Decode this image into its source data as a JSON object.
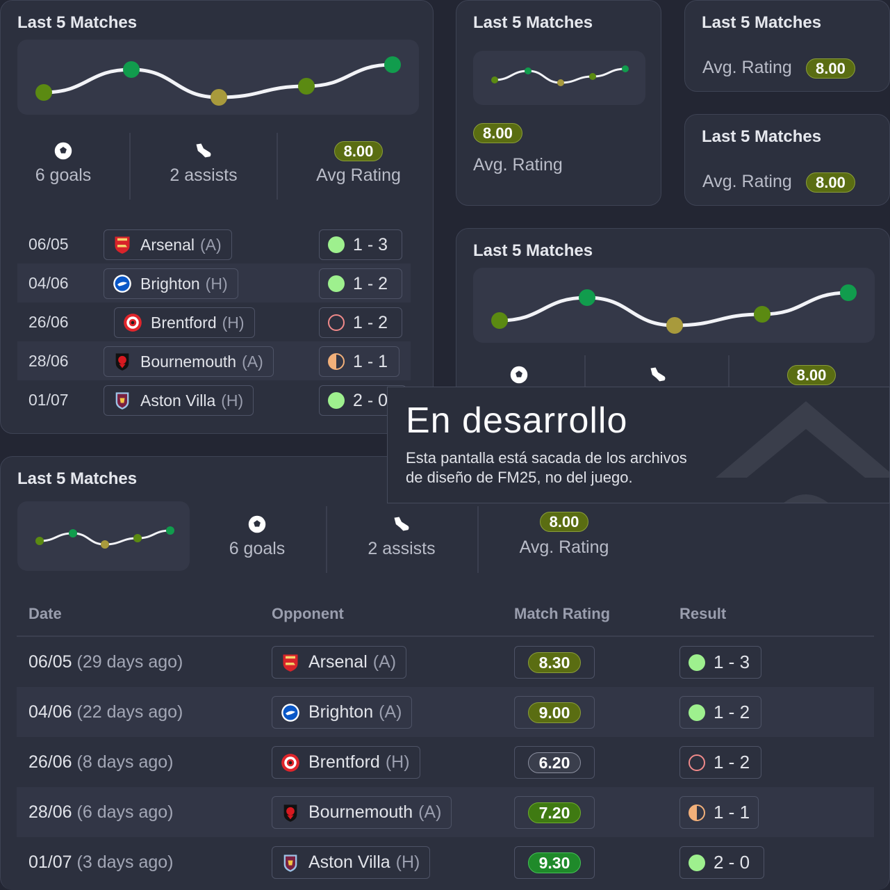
{
  "card_title": "Last 5 Matches",
  "stats": {
    "goals": "6 goals",
    "assists": "2 assists",
    "avg_rating": "8.00",
    "avg_label": "Avg Rating",
    "avg_label_dot": "Avg. Rating"
  },
  "icons": {
    "goals": "soccer-ball-icon",
    "assists": "football-boot-icon"
  },
  "colors": {
    "win": "#9ef08e",
    "loss": "#f08a8a",
    "draw": "#f2b07a",
    "rating_pill": "#5a6d12",
    "background": "#232633"
  },
  "form_ratings": [
    7.4,
    8.3,
    6.9,
    7.6,
    8.5
  ],
  "matches": [
    {
      "date": "06/05",
      "ago": "(29 days ago)",
      "team": "Arsenal",
      "venue_short": "(A)",
      "venue": "(A)",
      "rating": "8.30",
      "result": "1 - 3",
      "outcome": "win"
    },
    {
      "date": "04/06",
      "ago": "(22 days ago)",
      "team": "Brighton",
      "venue_short": "(H)",
      "venue": "(A)",
      "rating": "9.00",
      "result": "1 - 2",
      "outcome": "win"
    },
    {
      "date": "26/06",
      "ago": "(8 days ago)",
      "team": "Brentford",
      "venue_short": "(H)",
      "venue": "(H)",
      "rating": "6.20",
      "result": "1 - 2",
      "outcome": "loss"
    },
    {
      "date": "28/06",
      "ago": "(6 days ago)",
      "team": "Bournemouth",
      "venue_short": "(A)",
      "venue": "(A)",
      "rating": "7.20",
      "result": "1 - 1",
      "outcome": "draw"
    },
    {
      "date": "01/07",
      "ago": "(3 days ago)",
      "team": "Aston Villa",
      "venue_short": "(H)",
      "venue": "(H)",
      "rating": "9.30",
      "result": "2 - 0",
      "outcome": "win"
    }
  ],
  "table_headers": {
    "date": "Date",
    "opponent": "Opponent",
    "match_rating": "Match Rating",
    "result": "Result"
  },
  "overlay": {
    "title": "En desarrollo",
    "line1": "Esta pantalla está sacada de los archivos",
    "line2": "de diseño de FM25, no del juego."
  }
}
